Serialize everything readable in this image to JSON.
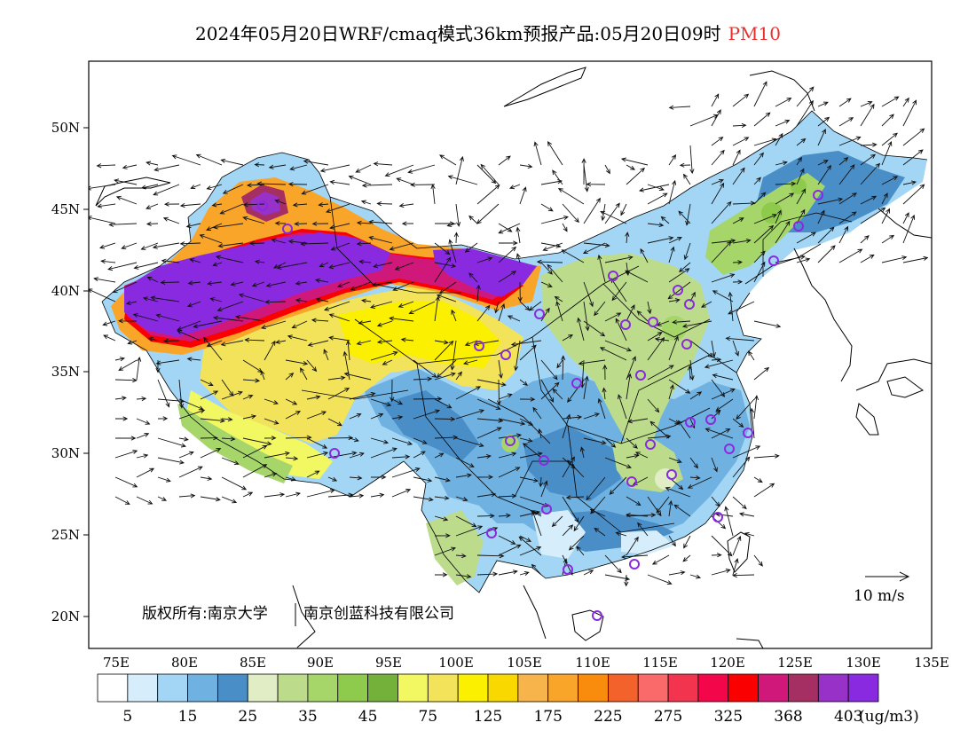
{
  "title": {
    "main": "2024年05月20日WRF/cmaq模式36km预报产品:05月20日09时",
    "variable": "PM10"
  },
  "map": {
    "lat_ticks": [
      "50N",
      "45N",
      "40N",
      "35N",
      "30N",
      "25N",
      "20N"
    ],
    "lon_ticks": [
      "75E",
      "80E",
      "85E",
      "90E",
      "95E",
      "100E",
      "105E",
      "110E",
      "115E",
      "120E",
      "125E",
      "130E",
      "135E"
    ],
    "copyright_left": "版权所有:南京大学",
    "copyright_right": "南京创蓝科技有限公司",
    "wind_ref_label": "10 m/s"
  },
  "colorbar": {
    "unit": "(ug/m3)",
    "colors": [
      "#ffffff",
      "#d6eefb",
      "#a2d6f4",
      "#6fb1e0",
      "#4a8ec8",
      "#e0edc5",
      "#bcdc8c",
      "#a6d66a",
      "#8ecb4c",
      "#73b13b",
      "#f2f862",
      "#f2e35a",
      "#fbf000",
      "#f9d800",
      "#f7b44a",
      "#f8a52a",
      "#f98c0c",
      "#f4622b",
      "#fa6a6b",
      "#f3344f",
      "#f4074a",
      "#fa0000",
      "#d0177a",
      "#a52f63",
      "#9831c8",
      "#8a2ae0"
    ],
    "labels": [
      "5",
      "15",
      "25",
      "35",
      "45",
      "75",
      "125",
      "175",
      "225",
      "275",
      "325",
      "368",
      "403"
    ]
  }
}
